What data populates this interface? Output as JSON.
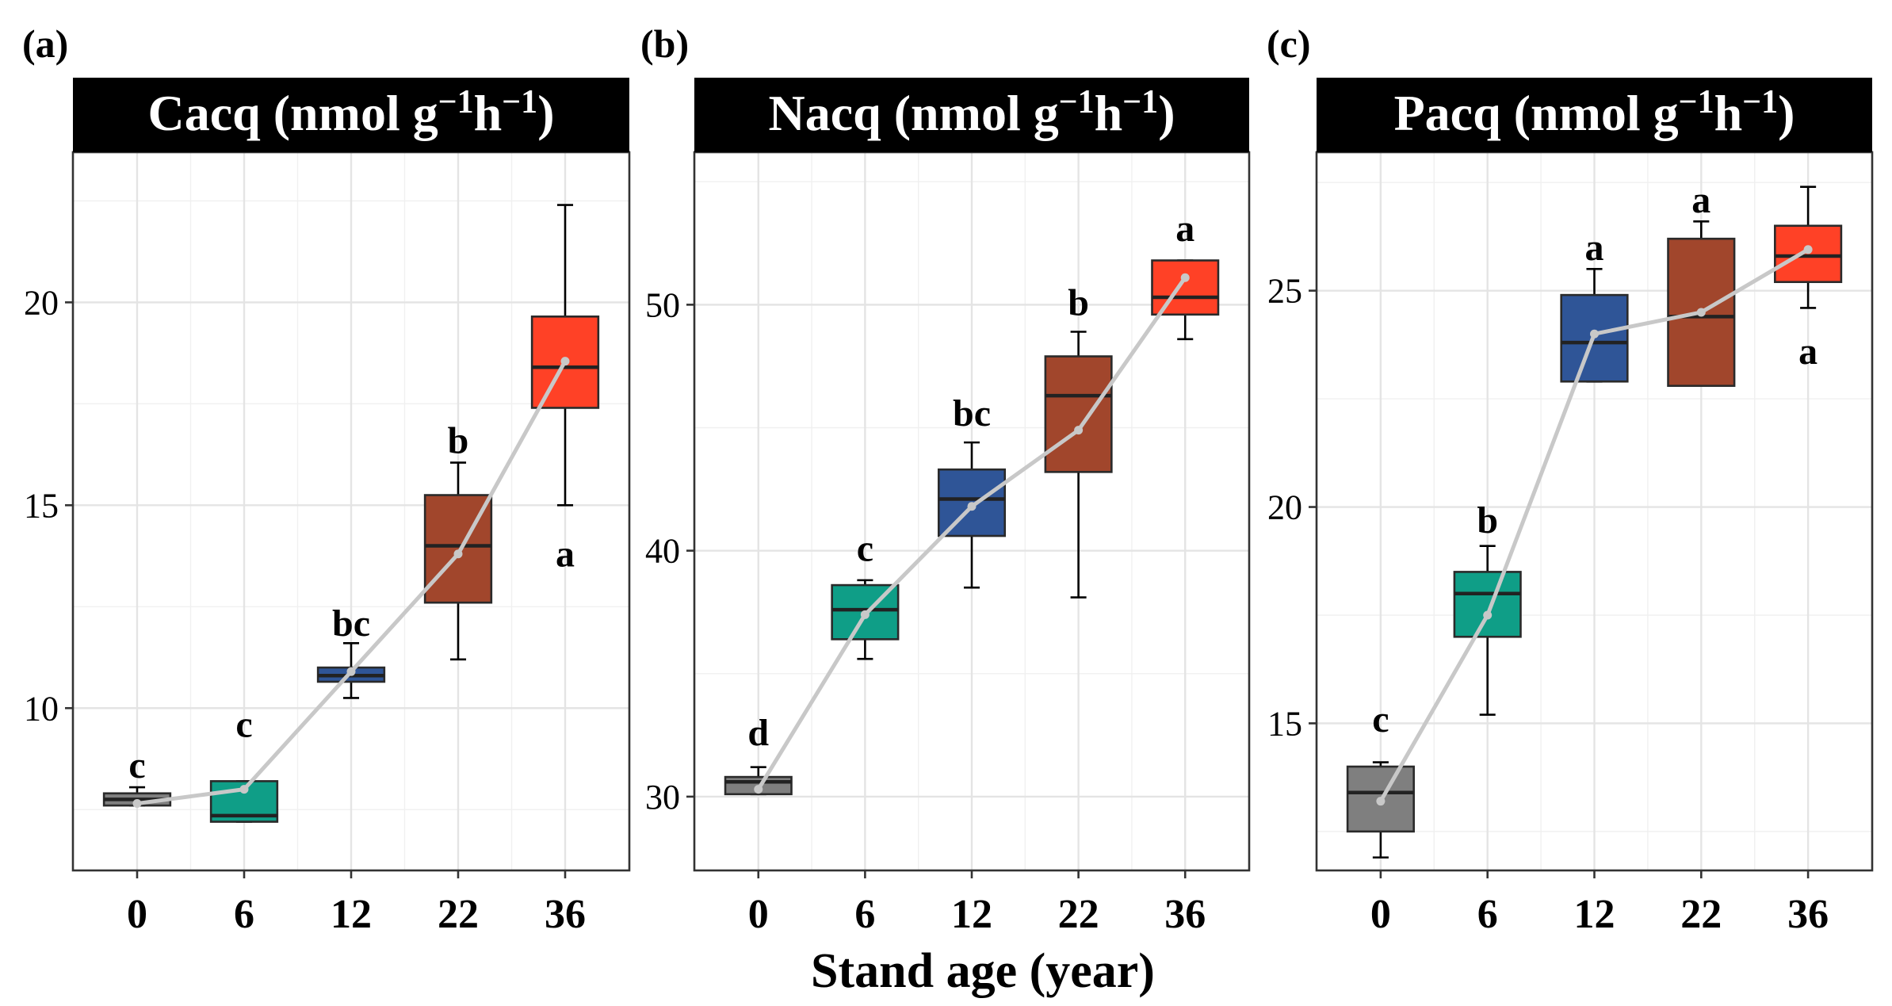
{
  "chart_data": [
    {
      "type": "box",
      "panel_label": "(a)",
      "title": "Cacq (nmol g",
      "title_exp1": "−1",
      "title_mid": "h",
      "title_exp2": "−1",
      "title_end": ")",
      "categories": [
        "0",
        "6",
        "12",
        "22",
        "36"
      ],
      "ylim": [
        6.0,
        23.7
      ],
      "yticks": [
        10,
        15,
        20
      ],
      "ytick_labels": [
        "10",
        "15",
        "20"
      ],
      "box_colors": [
        "#7f7f7f",
        "#0f9e87",
        "#2f5597",
        "#a1462c",
        "#ff4126"
      ],
      "stats": [
        {
          "min": 7.6,
          "q1": 7.6,
          "median": 7.75,
          "q3": 7.9,
          "max": 8.05,
          "mean": 7.65,
          "letter": "c",
          "letter_pos": "above",
          "letter_y": 8.6
        },
        {
          "min": 7.2,
          "q1": 7.2,
          "median": 7.35,
          "q3": 8.2,
          "max": 8.2,
          "mean": 8.0,
          "letter": "c",
          "letter_pos": "above",
          "letter_y": 9.6
        },
        {
          "min": 10.25,
          "q1": 10.65,
          "median": 10.8,
          "q3": 11.0,
          "max": 11.6,
          "mean": 10.9,
          "letter": "bc",
          "letter_pos": "above",
          "letter_y": 12.1
        },
        {
          "min": 11.2,
          "q1": 12.6,
          "median": 14.0,
          "q3": 15.25,
          "max": 16.05,
          "mean": 13.8,
          "letter": "b",
          "letter_pos": "above",
          "letter_y": 16.6
        },
        {
          "min": 15.0,
          "q1": 17.4,
          "median": 18.4,
          "q3": 19.65,
          "max": 22.4,
          "mean": 18.55,
          "letter": "a",
          "letter_pos": "below",
          "letter_y": 13.8
        }
      ]
    },
    {
      "type": "box",
      "panel_label": "(b)",
      "title": "Nacq (nmol g",
      "title_exp1": "−1",
      "title_mid": "h",
      "title_exp2": "−1",
      "title_end": ")",
      "categories": [
        "0",
        "6",
        "12",
        "22",
        "36"
      ],
      "ylim": [
        27.0,
        56.2
      ],
      "yticks": [
        30,
        40,
        50
      ],
      "ytick_labels": [
        "30",
        "40",
        "50"
      ],
      "box_colors": [
        "#7f7f7f",
        "#0f9e87",
        "#2f5597",
        "#a1462c",
        "#ff4126"
      ],
      "stats": [
        {
          "min": 30.1,
          "q1": 30.1,
          "median": 30.6,
          "q3": 30.8,
          "max": 31.2,
          "mean": 30.3,
          "letter": "d",
          "letter_pos": "above",
          "letter_y": 32.6
        },
        {
          "min": 35.6,
          "q1": 36.4,
          "median": 37.6,
          "q3": 38.6,
          "max": 38.8,
          "mean": 37.4,
          "letter": "c",
          "letter_pos": "above",
          "letter_y": 40.1
        },
        {
          "min": 38.5,
          "q1": 40.6,
          "median": 42.1,
          "q3": 43.3,
          "max": 44.4,
          "mean": 41.8,
          "letter": "bc",
          "letter_pos": "above",
          "letter_y": 45.6
        },
        {
          "min": 38.1,
          "q1": 43.2,
          "median": 46.3,
          "q3": 47.9,
          "max": 48.9,
          "mean": 44.9,
          "letter": "b",
          "letter_pos": "above",
          "letter_y": 50.1
        },
        {
          "min": 48.6,
          "q1": 49.6,
          "median": 50.3,
          "q3": 51.8,
          "max": 51.8,
          "mean": 51.1,
          "letter": "a",
          "letter_pos": "above",
          "letter_y": 53.1
        }
      ]
    },
    {
      "type": "box",
      "panel_label": "(c)",
      "title": "Pacq (nmol g",
      "title_exp1": "−1",
      "title_mid": "h",
      "title_exp2": "−1",
      "title_end": ")",
      "categories": [
        "0",
        "6",
        "12",
        "22",
        "36"
      ],
      "ylim": [
        11.6,
        28.2
      ],
      "yticks": [
        15,
        20,
        25
      ],
      "ytick_labels": [
        "15",
        "20",
        "25"
      ],
      "box_colors": [
        "#7f7f7f",
        "#0f9e87",
        "#2f5597",
        "#a1462c",
        "#ff4126"
      ],
      "stats": [
        {
          "min": 11.9,
          "q1": 12.5,
          "median": 13.4,
          "q3": 14.0,
          "max": 14.1,
          "mean": 13.2,
          "letter": "c",
          "letter_pos": "above",
          "letter_y": 15.1
        },
        {
          "min": 15.2,
          "q1": 17.0,
          "median": 18.0,
          "q3": 18.5,
          "max": 19.1,
          "mean": 17.5,
          "letter": "b",
          "letter_pos": "above",
          "letter_y": 19.7
        },
        {
          "min": 22.9,
          "q1": 22.9,
          "median": 23.8,
          "q3": 24.9,
          "max": 25.5,
          "mean": 24.0,
          "letter": "a",
          "letter_pos": "above",
          "letter_y": 26.0
        },
        {
          "min": 22.8,
          "q1": 22.8,
          "median": 24.4,
          "q3": 26.2,
          "max": 26.6,
          "mean": 24.5,
          "letter": "a",
          "letter_pos": "above",
          "letter_y": 27.1
        },
        {
          "min": 24.6,
          "q1": 25.2,
          "median": 25.8,
          "q3": 26.5,
          "max": 27.4,
          "mean": 25.95,
          "letter": "a",
          "letter_pos": "below",
          "letter_y": 23.6
        }
      ]
    }
  ],
  "xlabel": "Stand age (year)"
}
